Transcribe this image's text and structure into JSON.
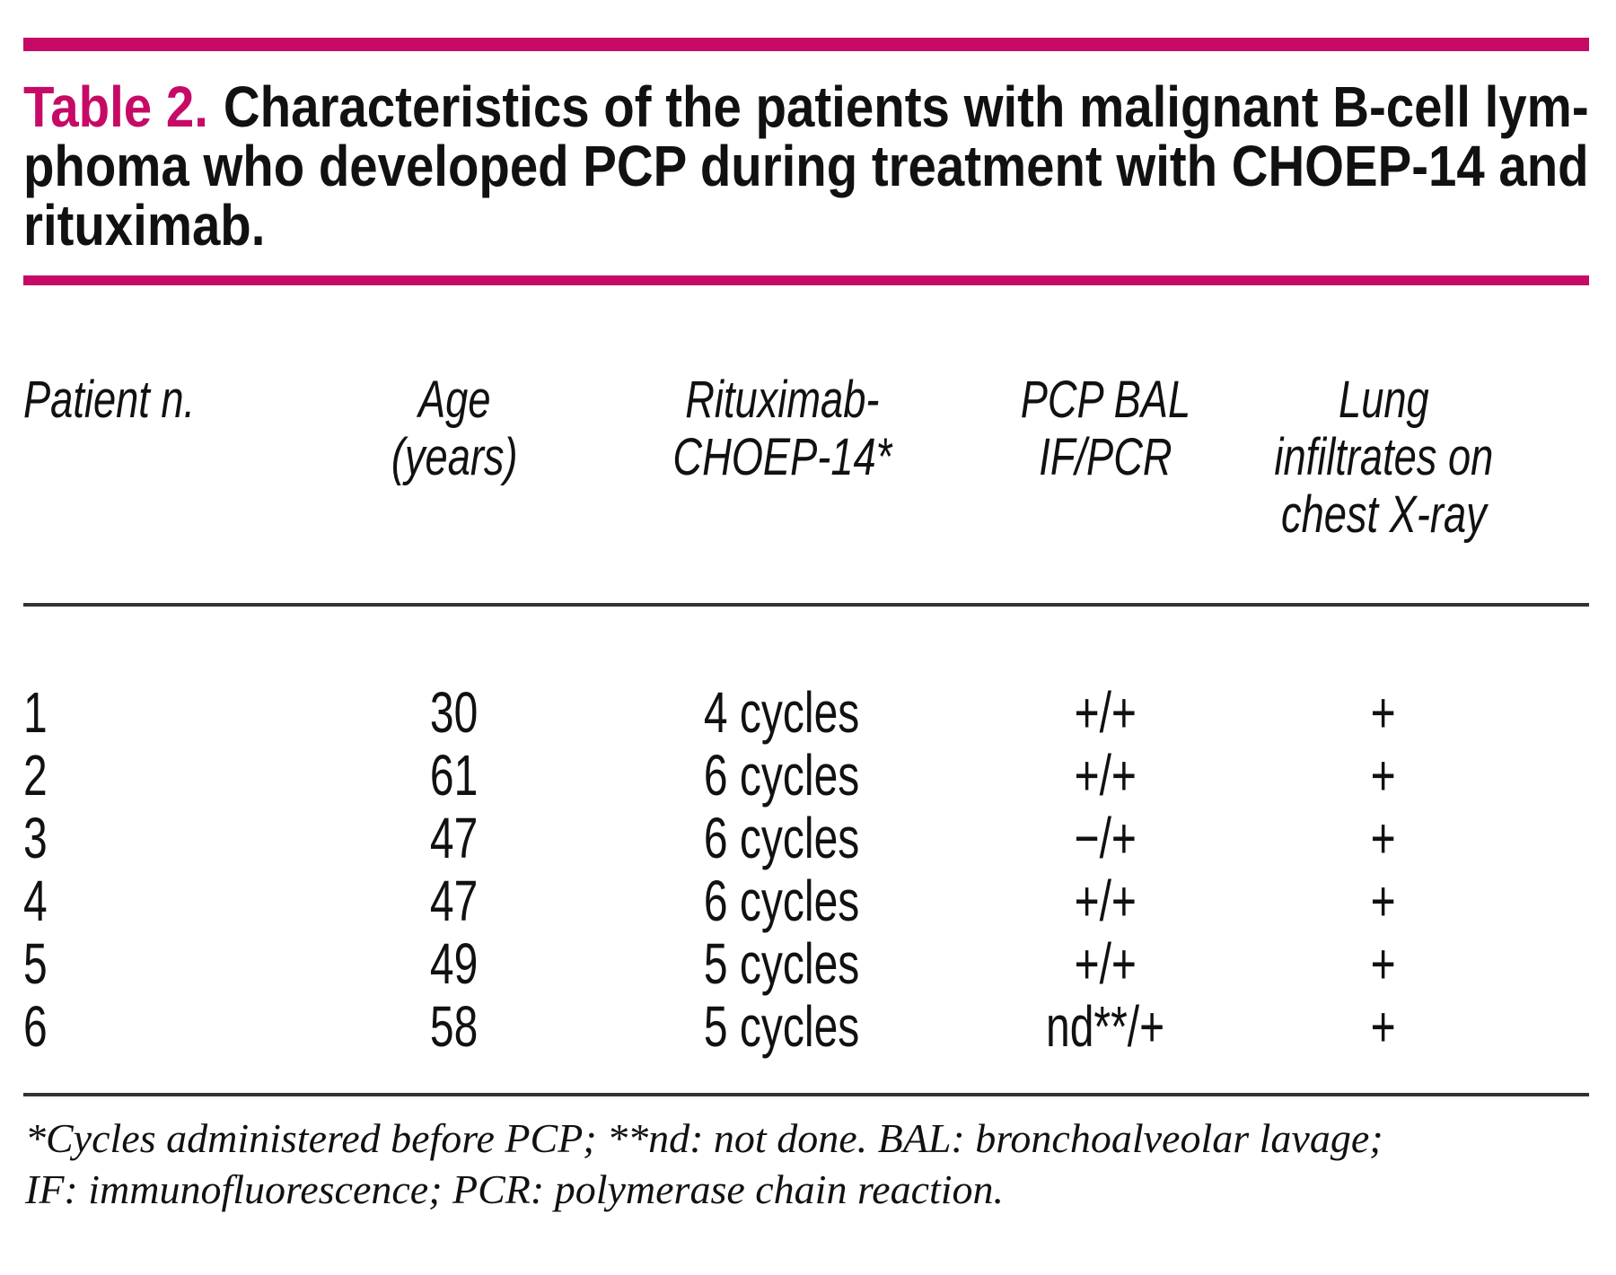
{
  "colors": {
    "accent": "#c60a66",
    "rule": "#333333",
    "ink": "#111111"
  },
  "title": {
    "label": "Table 2.",
    "lines": [
      "Characteristics of the patients with malignant B-cell lym-",
      "phoma who developed PCP during treatment with CHOEP-14 and",
      "rituximab."
    ]
  },
  "table": {
    "columns": [
      "Patient n.",
      "Age\n(years)",
      "Rituximab-\nCHOEP-14*",
      "PCP BAL\nIF/PCR",
      "Lung\ninfiltrates on\nchest X-ray"
    ],
    "rows": [
      {
        "patient": "1",
        "age": "30",
        "cycles": "4 cycles",
        "pcp": "+/+",
        "lung": "+"
      },
      {
        "patient": "2",
        "age": "61",
        "cycles": "6 cycles",
        "pcp": "+/+",
        "lung": "+"
      },
      {
        "patient": "3",
        "age": "47",
        "cycles": "6 cycles",
        "pcp": "−/+",
        "lung": "+"
      },
      {
        "patient": "4",
        "age": "47",
        "cycles": "6 cycles",
        "pcp": "+/+",
        "lung": "+"
      },
      {
        "patient": "5",
        "age": "49",
        "cycles": "5 cycles",
        "pcp": "+/+",
        "lung": "+"
      },
      {
        "patient": "6",
        "age": "58",
        "cycles": "5 cycles",
        "pcp": "nd**/+",
        "lung": "+"
      }
    ]
  },
  "footnote": {
    "lines": [
      "*Cycles administered before PCP; **nd: not done. BAL: bronchoalveolar lavage;",
      "IF: immunofluorescence; PCR: polymerase chain reaction."
    ]
  }
}
